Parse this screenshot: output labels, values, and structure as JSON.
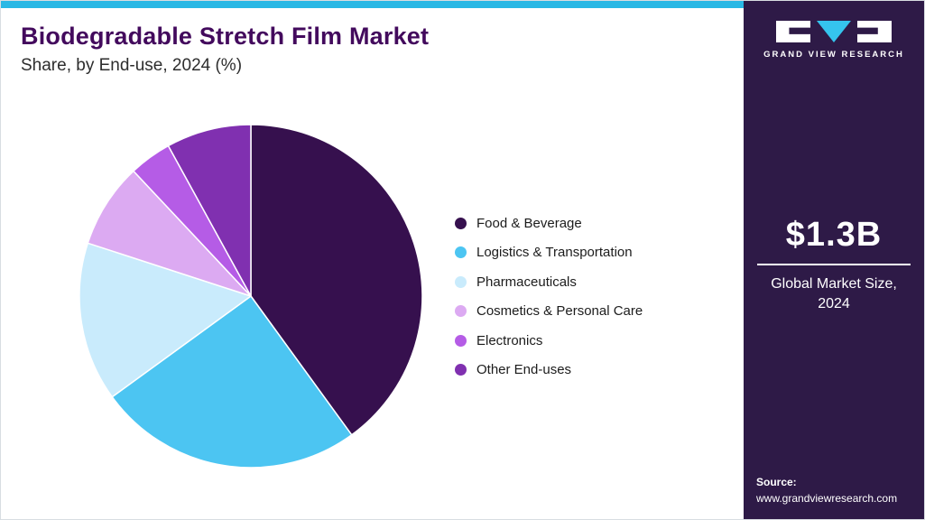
{
  "header": {
    "title": "Biodegradable Stretch Film Market",
    "subtitle": "Share, by End-use, 2024 (%)"
  },
  "chart_data": {
    "type": "pie",
    "title": "Biodegradable Stretch Film Market Share, by End-use, 2024 (%)",
    "labels": [
      "Food & Beverage",
      "Logistics & Transportation",
      "Pharmaceuticals",
      "Cosmetics & Personal Care",
      "Electronics",
      "Other End-uses"
    ],
    "values": [
      40,
      25,
      15,
      8,
      4,
      8
    ],
    "colors": [
      "#36104e",
      "#4cc5f2",
      "#c9ebfc",
      "#dcaaf2",
      "#b55ce6",
      "#8030b0"
    ],
    "start_angle_deg": 0,
    "direction": "clockwise",
    "legend_position": "right",
    "value_labels_shown": false
  },
  "sidebar": {
    "logo_text": "GRAND VIEW RESEARCH",
    "market_size_value": "$1.3B",
    "market_size_label": "Global Market Size, 2024",
    "source_label": "Source:",
    "source_url": "www.grandviewresearch.com"
  },
  "colors": {
    "accent_cyan": "#29b8e5",
    "sidebar_bg": "#2e1a47",
    "title_purple": "#430a5d"
  }
}
